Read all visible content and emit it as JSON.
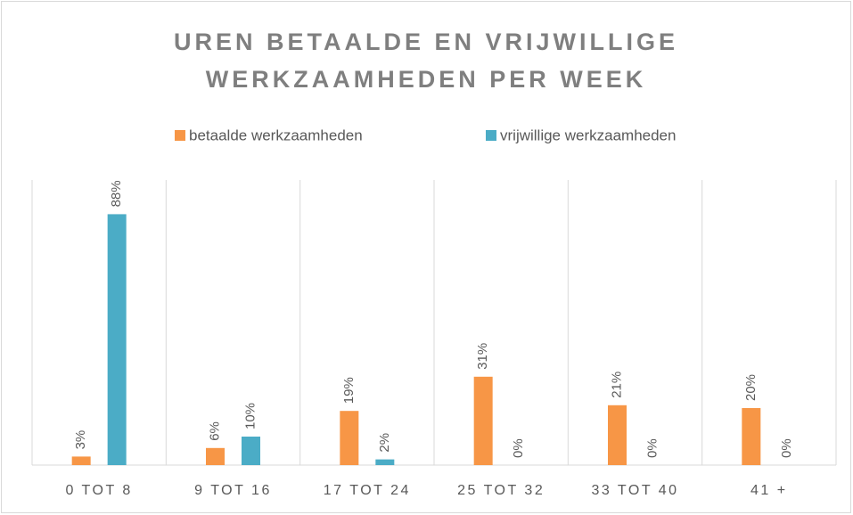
{
  "chart_data": {
    "type": "bar",
    "title": [
      "UREN BETAALDE EN VRIJWILLIGE",
      "WERKZAAMHEDEN PER WEEK"
    ],
    "categories": [
      "0 TOT 8",
      "9 TOT 16",
      "17 TOT 24",
      "25 TOT 32",
      "33 TOT 40",
      "41 +"
    ],
    "series": [
      {
        "name": "betaalde werkzaamheden",
        "color": "#f79646",
        "values": [
          3,
          6,
          19,
          31,
          21,
          20
        ],
        "value_labels": [
          "3%",
          "6%",
          "19%",
          "31%",
          "21%",
          "20%"
        ]
      },
      {
        "name": "vrijwillige werkzaamheden",
        "color": "#4bacc6",
        "values": [
          88,
          10,
          2,
          0,
          0,
          0
        ],
        "value_labels": [
          "88%",
          "10%",
          "2%",
          "0%",
          "0%",
          "0%"
        ]
      }
    ],
    "legend": "top"
  }
}
